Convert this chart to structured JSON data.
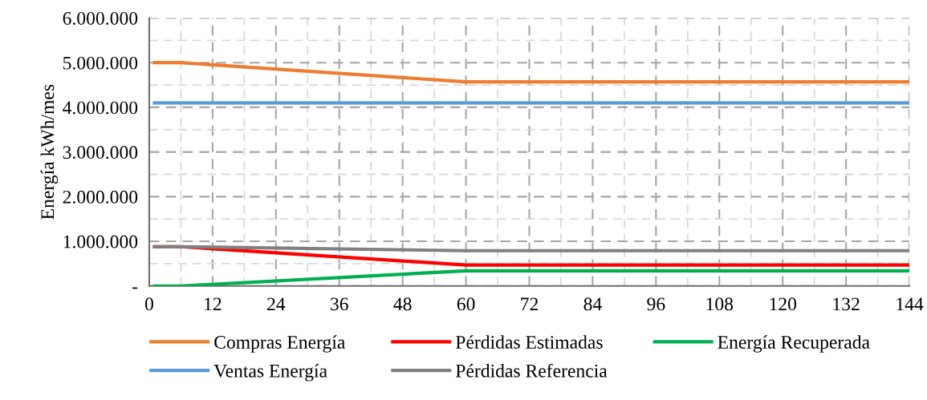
{
  "chart_data": {
    "type": "line",
    "ylabel": "Energía kWh/mes",
    "x": [
      1,
      6,
      60,
      144
    ],
    "series": [
      {
        "name": "Compras Energía",
        "color": "#ed7d31",
        "values": [
          5000000,
          5000000,
          4570000,
          4570000
        ]
      },
      {
        "name": "Ventas Energía",
        "color": "#5b9bd5",
        "values": [
          4100000,
          4100000,
          4100000,
          4100000
        ]
      },
      {
        "name": "Pérdidas Estimadas",
        "color": "#ff0000",
        "values": [
          880000,
          880000,
          470000,
          470000
        ]
      },
      {
        "name": "Pérdidas Referencia",
        "color": "#808080",
        "values": [
          880000,
          880000,
          790000,
          790000
        ]
      },
      {
        "name": "Energía Recuperada",
        "color": "#00b050",
        "values": [
          0,
          0,
          340000,
          340000
        ]
      }
    ],
    "xlim": [
      0,
      144
    ],
    "xticks": [
      0,
      12,
      24,
      36,
      48,
      60,
      72,
      84,
      96,
      108,
      120,
      132,
      144
    ],
    "ylim": [
      0,
      6000000
    ],
    "yticks": [
      {
        "value": 0,
        "label": "-"
      },
      {
        "value": 1000000,
        "label": "1.000.000"
      },
      {
        "value": 2000000,
        "label": "2.000.000"
      },
      {
        "value": 3000000,
        "label": "3.000.000"
      },
      {
        "value": 4000000,
        "label": "4.000.000"
      },
      {
        "value": 5000000,
        "label": "5.000.000"
      },
      {
        "value": 6000000,
        "label": "6.000.000"
      }
    ],
    "grid": true,
    "legend": "bottom",
    "marker": "none",
    "line_style": "solid"
  }
}
